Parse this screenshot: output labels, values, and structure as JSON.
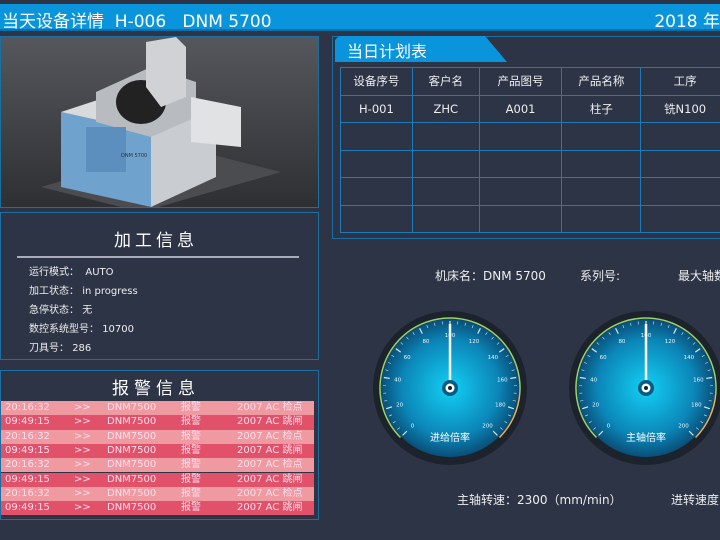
{
  "header": {
    "title": "当天设备详情  H-006   DNM 5700",
    "date": "2018 年"
  },
  "machine_image": {
    "model_label": "DNM 5700"
  },
  "processing": {
    "title": "加工信息",
    "items": [
      {
        "label": "运行模式：",
        "value": " AUTO"
      },
      {
        "label": "加工状态：",
        "value": "in progress"
      },
      {
        "label": "急停状态：",
        "value": "无"
      },
      {
        "label": "数控系统型号：",
        "value": "10700"
      },
      {
        "label": "刀具号：",
        "value": "286"
      }
    ]
  },
  "alarm": {
    "title": "报警信息",
    "rows": [
      {
        "time": "20:16:32",
        "sep": ">>",
        "machine": "DNM7500",
        "type": "报警",
        "code": "2007  AC 检点"
      },
      {
        "time": "09:49:15",
        "sep": ">>",
        "machine": "DNM7500",
        "type": "报警",
        "code": "2007  AC 跳闸"
      },
      {
        "time": "20:16:32",
        "sep": ">>",
        "machine": "DNM7500",
        "type": "报警",
        "code": "2007  AC 检点"
      },
      {
        "time": "09:49:15",
        "sep": ">>",
        "machine": "DNM7500",
        "type": "报警",
        "code": "2007  AC 跳闸"
      },
      {
        "time": "20:16:32",
        "sep": ">>",
        "machine": "DNM7500",
        "type": "报警",
        "code": "2007  AC 检点"
      },
      {
        "time": "09:49:15",
        "sep": ">>",
        "machine": "DNM7500",
        "type": "报警",
        "code": "2007  AC 跳闸"
      },
      {
        "time": "20:16:32",
        "sep": ">>",
        "machine": "DNM7500",
        "type": "报警",
        "code": "2007  AC 检点"
      },
      {
        "time": "09:49:15",
        "sep": ">>",
        "machine": "DNM7500",
        "type": "报警",
        "code": "2007  AC 跳闸"
      }
    ]
  },
  "plan": {
    "title": "当日计划表",
    "columns": [
      "设备序号",
      "客户名",
      "产品图号",
      "产品名称",
      "工序"
    ],
    "rows": [
      [
        "H-001",
        "ZHC",
        "A001",
        "柱子",
        "铣N100"
      ],
      [
        "",
        "",
        "",
        "",
        ""
      ],
      [
        "",
        "",
        "",
        "",
        ""
      ],
      [
        "",
        "",
        "",
        "",
        ""
      ],
      [
        "",
        "",
        "",
        "",
        ""
      ]
    ]
  },
  "machine_info": {
    "name": "机床名：DNM 5700",
    "series": "系列号:",
    "max_axis": "最大轴数"
  },
  "gauges": [
    {
      "label": "进给倍率",
      "value": 100,
      "min": 0,
      "max": 200,
      "ticks": [
        "0",
        "20",
        "40",
        "60",
        "80",
        "100",
        "120",
        "140",
        "160",
        "180",
        "200"
      ]
    },
    {
      "label": "主轴倍率",
      "value": 100,
      "min": 0,
      "max": 200,
      "ticks": [
        "0",
        "20",
        "40",
        "60",
        "80",
        "100",
        "120",
        "140",
        "160",
        "180",
        "200"
      ]
    }
  ],
  "footer": {
    "spindle_speed": "主轴转速：2300（mm/min）",
    "feed_speed": "进转速度"
  },
  "colors": {
    "accent": "#0a94db",
    "alarm_light": "#ef9aa1",
    "alarm_dark": "#e1526a",
    "background": "#2c3446"
  }
}
